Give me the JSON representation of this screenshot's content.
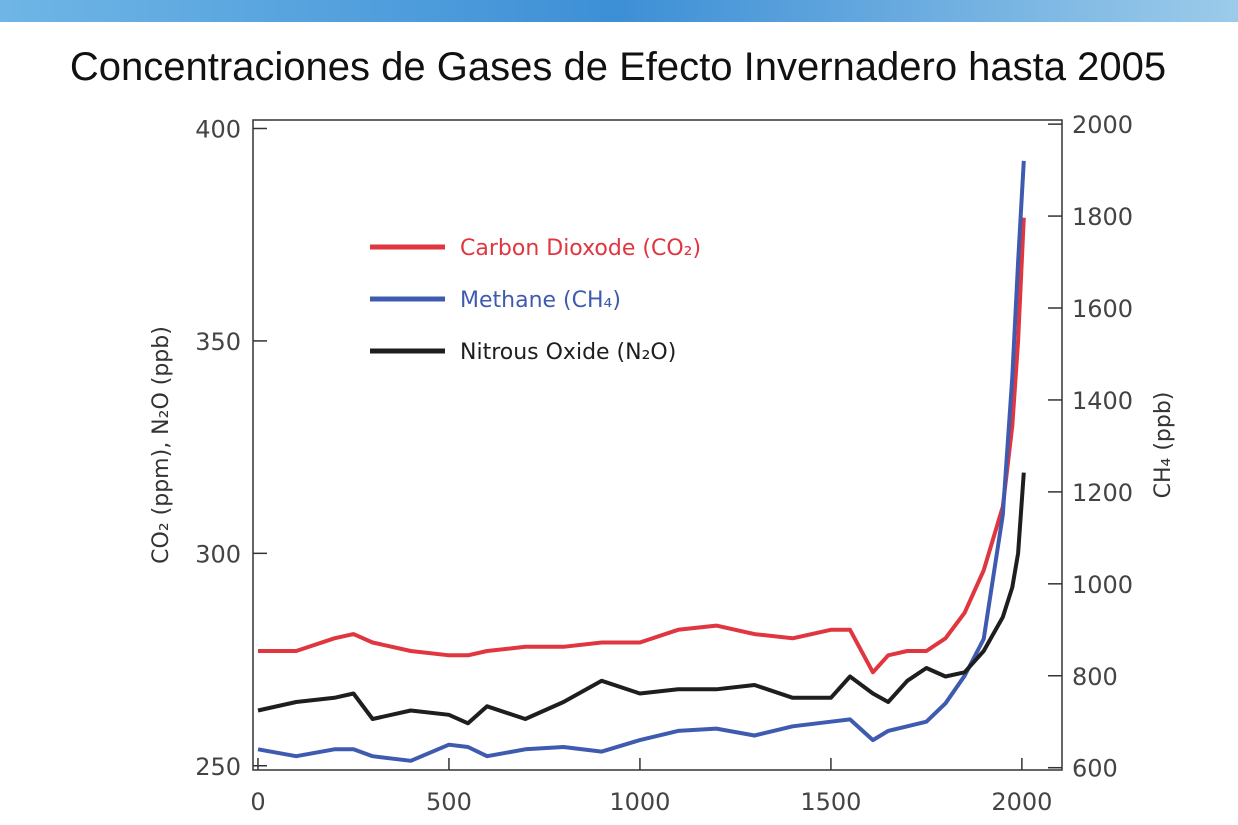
{
  "chart_data": {
    "type": "line",
    "title": "Concentraciones de Gases de Efecto Invernadero hasta 2005",
    "y_label": "CO₂ (ppm), N₂O (ppb)",
    "y2_label": "CH₄ (ppb)",
    "x": [
      0,
      100,
      200,
      250,
      300,
      400,
      500,
      550,
      600,
      700,
      800,
      900,
      1000,
      1100,
      1200,
      1300,
      1400,
      1500,
      1550,
      1610,
      1650,
      1700,
      1750,
      1800,
      1850,
      1900,
      1950,
      1975,
      1990,
      2005
    ],
    "series": [
      {
        "name": "Carbon Dioxode (CO₂)",
        "color": "#e0363f",
        "values": [
          277,
          277,
          280,
          281,
          279,
          277,
          276,
          276,
          277,
          278,
          278,
          279,
          279,
          282,
          283,
          281,
          280,
          282,
          282,
          272,
          276,
          277,
          277,
          280,
          286,
          296,
          311,
          330,
          350,
          379
        ]
      },
      {
        "name": "Methane (CH₄)",
        "color": "#3f5bb0",
        "axis": "y2",
        "values": [
          640,
          625,
          640,
          640,
          625,
          615,
          650,
          645,
          625,
          640,
          645,
          635,
          660,
          680,
          685,
          670,
          690,
          700,
          705,
          660,
          680,
          690,
          700,
          740,
          800,
          880,
          1150,
          1450,
          1700,
          1920
        ]
      },
      {
        "name": "Nitrous Oxide (N₂O)",
        "color": "#1e1e1e",
        "values": [
          263,
          265,
          266,
          267,
          261,
          263,
          262,
          260,
          264,
          261,
          265,
          270,
          267,
          268,
          268,
          269,
          266,
          266,
          271,
          267,
          265,
          270,
          273,
          271,
          272,
          277,
          285,
          292,
          300,
          319
        ]
      }
    ],
    "xlim": [
      -13,
      2105
    ],
    "xticks": [
      0,
      500,
      1000,
      1500,
      2000
    ],
    "ylim": [
      249,
      402
    ],
    "yticks": [
      250,
      300,
      350,
      400
    ],
    "y2lim": [
      595,
      2009
    ],
    "y2ticks": [
      600,
      800,
      1000,
      1200,
      1400,
      1600,
      1800,
      2000
    ]
  }
}
